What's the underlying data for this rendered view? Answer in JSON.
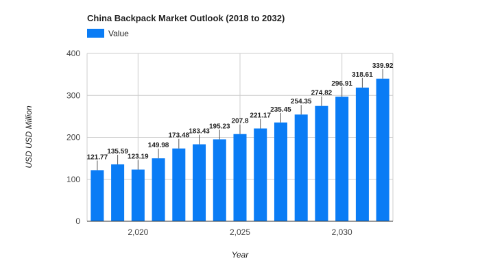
{
  "chart_data": {
    "type": "bar",
    "title": "China Backpack Market Outlook (2018 to 2032)",
    "xlabel": "Year",
    "ylabel": "USD USD Million",
    "legend": {
      "position": "top-left",
      "entries": [
        "Value"
      ]
    },
    "x": [
      2018,
      2019,
      2020,
      2021,
      2022,
      2023,
      2024,
      2025,
      2026,
      2027,
      2028,
      2029,
      2030,
      2031,
      2032
    ],
    "series": [
      {
        "name": "Value",
        "color": "#0a7cf5",
        "values": [
          121.77,
          135.59,
          123.19,
          149.98,
          173.48,
          183.43,
          195.23,
          207.8,
          221.17,
          235.45,
          254.35,
          274.82,
          296.91,
          318.61,
          339.92
        ],
        "labels": [
          "121.77",
          "135.59",
          "123.19",
          "149.98",
          "173.48",
          "183.43",
          "195.23",
          "207.8",
          "221.17",
          "235.45",
          "254.35",
          "274.82",
          "296.91",
          "318.61",
          "339.92"
        ]
      }
    ],
    "ylim": [
      0,
      400
    ],
    "yticks": [
      0,
      100,
      200,
      300,
      400
    ],
    "ytick_labels": [
      "0",
      "100",
      "200",
      "300",
      "400"
    ],
    "xticks": [
      2020,
      2025,
      2030
    ],
    "xtick_labels": [
      "2,020",
      "2,025",
      "2,030"
    ],
    "xlim": [
      2017.5,
      2032.5
    ],
    "grid": true
  }
}
